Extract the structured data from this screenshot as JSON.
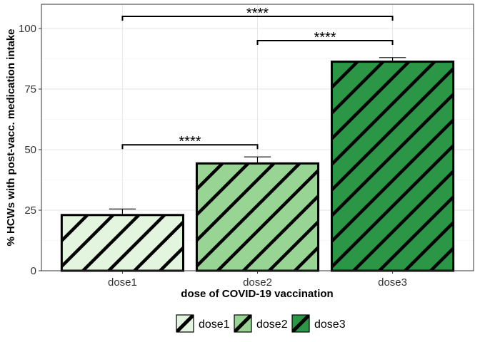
{
  "chart_data": {
    "type": "bar",
    "categories": [
      "dose1",
      "dose2",
      "dose3"
    ],
    "values": [
      23,
      44.3,
      86.3
    ],
    "error_upper": [
      25.5,
      47,
      88
    ],
    "xlabel": "dose of COVID-19 vaccination",
    "ylabel": "% HCWs with post-vacc. medication intake",
    "ylim": [
      0,
      110
    ],
    "yticks": [
      0,
      25,
      50,
      75,
      100
    ],
    "grid": true,
    "colors": [
      "#e3f5de",
      "#98d493",
      "#2b9646"
    ],
    "pattern": "diagonal-stripes",
    "legend": {
      "position": "bottom",
      "entries": [
        "dose1",
        "dose2",
        "dose3"
      ]
    },
    "significance": [
      {
        "from": "dose1",
        "to": "dose2",
        "y": 52,
        "label": "****"
      },
      {
        "from": "dose2",
        "to": "dose3",
        "y": 95,
        "label": "****"
      },
      {
        "from": "dose1",
        "to": "dose3",
        "y": 105,
        "label": "****"
      }
    ]
  }
}
